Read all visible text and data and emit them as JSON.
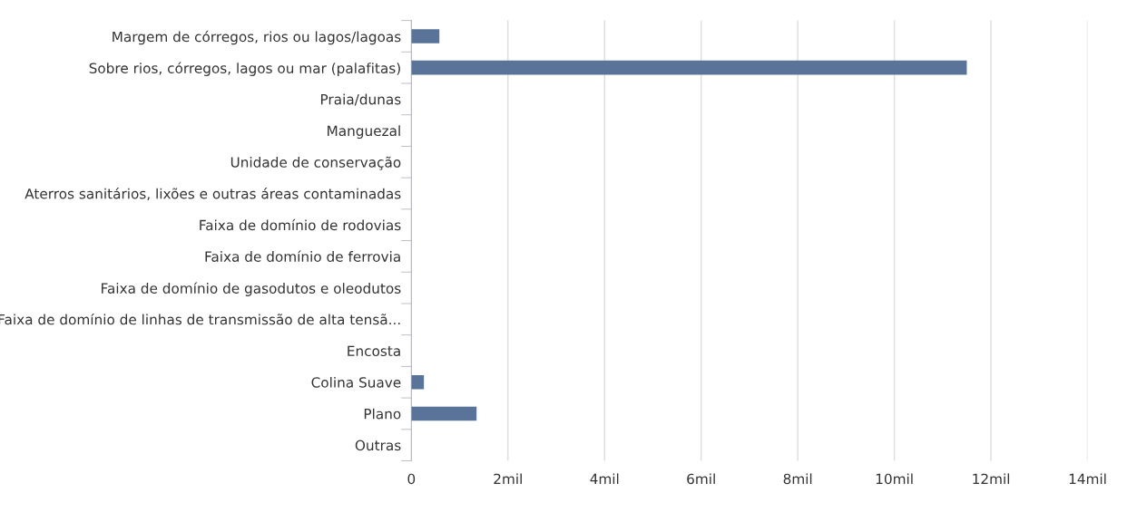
{
  "chart_data": {
    "type": "bar",
    "orientation": "horizontal",
    "categories": [
      "Margem de córregos, rios ou lagos/lagoas",
      "Sobre rios, córregos, lagos ou mar (palafitas)",
      "Praia/dunas",
      "Manguezal",
      "Unidade de conservação",
      "Aterros sanitários, lixões e outras áreas contaminadas",
      "Faixa de domínio de rodovias",
      "Faixa de domínio de ferrovia",
      "Faixa de domínio de gasodutos e oleodutos",
      "Faixa de domínio de linhas de transmissão de alta tensã...",
      "Encosta",
      "Colina Suave",
      "Plano",
      "Outras"
    ],
    "values": [
      0.58,
      11.5,
      0,
      0,
      0,
      0,
      0,
      0,
      0,
      0,
      0,
      0.26,
      1.35,
      0
    ],
    "color": "#5a7398",
    "xlim": [
      0,
      14
    ],
    "xticks": [
      0,
      {
        "value": 2,
        "label": "2mil"
      },
      {
        "value": 4,
        "label": "4mil"
      },
      {
        "value": 6,
        "label": "6mil"
      },
      {
        "value": 8,
        "label": "8mil"
      },
      {
        "value": 10,
        "label": "10mil"
      },
      {
        "value": 12,
        "label": "12mil"
      },
      {
        "value": 14,
        "label": "14mil"
      }
    ],
    "grid": "x"
  }
}
